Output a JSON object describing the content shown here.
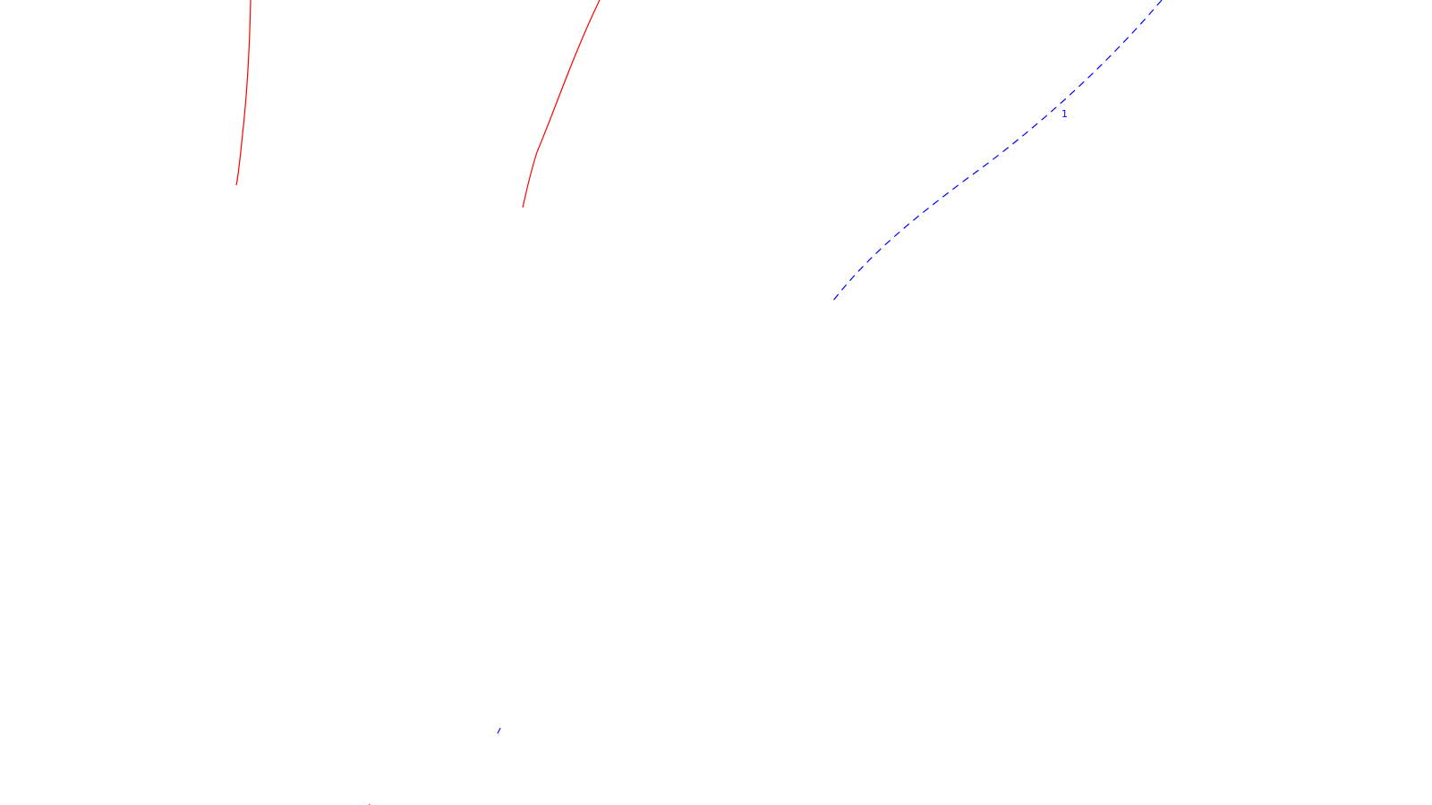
{
  "colors": {
    "background": "#ffffff",
    "solid_curve": "#ff0000",
    "dashed_curve": "#0000ff"
  },
  "curves": {
    "left_red": {
      "style": "solid",
      "color_key": "solid_curve"
    },
    "middle_red": {
      "style": "solid",
      "color_key": "solid_curve"
    },
    "blue_dashed": {
      "style": "dashed",
      "color_key": "dashed_curve"
    }
  },
  "labels": {
    "dashed_curve_label": "1"
  }
}
